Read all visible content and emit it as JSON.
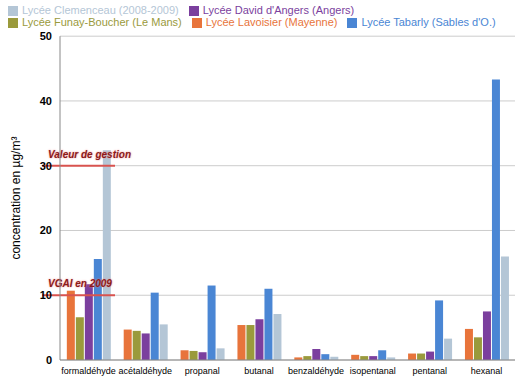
{
  "chart_data": {
    "type": "bar",
    "y_label": "concentration en µg/m³",
    "categories": [
      "formaldéhyde",
      "acétaldéhyde",
      "propanal",
      "butanal",
      "benzaldéhyde",
      "isopentanal",
      "pentanal",
      "hexanal"
    ],
    "series": [
      {
        "name": "Lycée Lavoisier (Mayenne)",
        "color": "#e8743b",
        "values": [
          10.7,
          4.7,
          1.5,
          5.4,
          0.4,
          0.8,
          1.0,
          4.8
        ]
      },
      {
        "name": "Lycée Funay-Boucher (Le Mans)",
        "color": "#9a9a3c",
        "values": [
          6.6,
          4.5,
          1.4,
          5.4,
          0.6,
          0.6,
          1.0,
          3.5
        ]
      },
      {
        "name": "Lycée David d'Angers (Angers)",
        "color": "#7b3f9e",
        "values": [
          11.7,
          4.1,
          1.2,
          6.3,
          1.7,
          0.6,
          1.3,
          7.5
        ]
      },
      {
        "name": "Lycée Tabarly (Sables d'O.)",
        "color": "#4a86d4",
        "values": [
          15.6,
          10.4,
          11.5,
          11.0,
          0.9,
          1.5,
          9.2,
          43.3
        ]
      },
      {
        "name": "Lycée Clemenceau (2008-2009)",
        "color": "#b4c6d6",
        "values": [
          32.4,
          5.5,
          1.8,
          7.1,
          0.5,
          0.4,
          3.3,
          16.0
        ]
      }
    ],
    "ylim": [
      0,
      50
    ],
    "yticks": [
      0,
      10,
      20,
      30,
      40,
      50
    ],
    "grid": true,
    "legend": "top",
    "annotations": [
      {
        "text": "Valeur de gestion",
        "y": 30,
        "color": "#d9534f"
      },
      {
        "text": "VGAI en 2009",
        "y": 10,
        "color": "#d9534f"
      }
    ]
  }
}
